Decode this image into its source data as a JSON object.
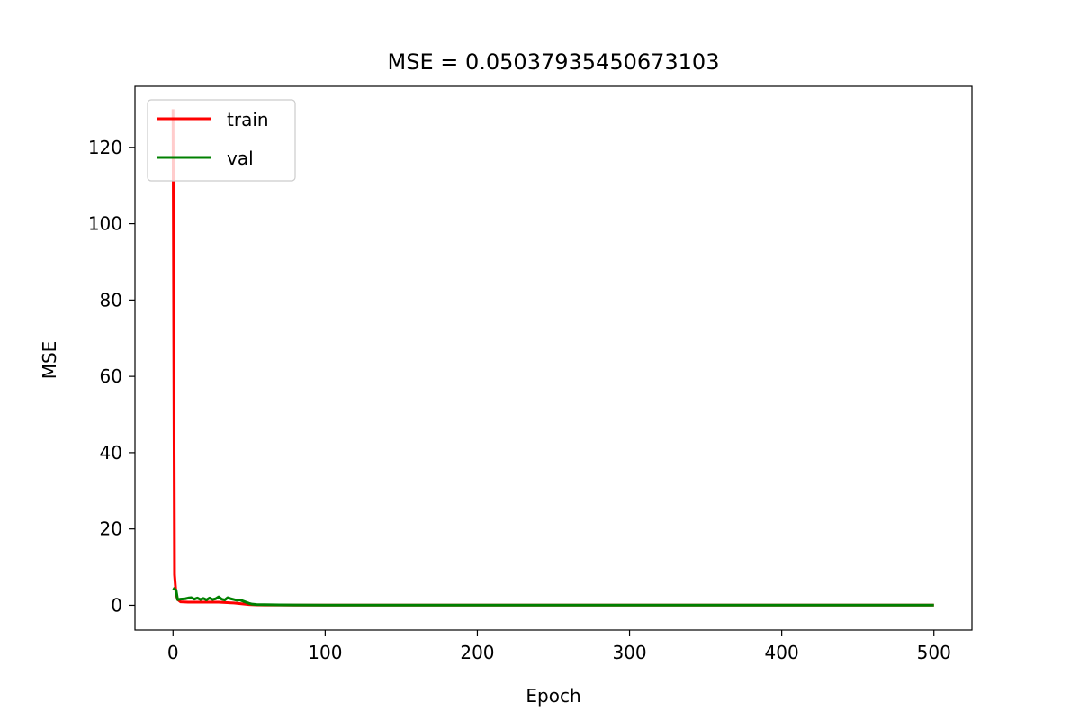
{
  "chart_data": {
    "type": "line",
    "title": "MSE = 0.05037935450673103",
    "xlabel": "Epoch",
    "ylabel": "MSE",
    "xlim": [
      -25,
      525
    ],
    "ylim": [
      -6.5,
      136
    ],
    "xticks": [
      0,
      100,
      200,
      300,
      400,
      500
    ],
    "yticks": [
      0,
      20,
      40,
      60,
      80,
      100,
      120
    ],
    "grid": false,
    "legend_position": "upper-left",
    "series": [
      {
        "name": "train",
        "color": "#ff0000",
        "points": [
          [
            0,
            130
          ],
          [
            1,
            8
          ],
          [
            2,
            3
          ],
          [
            3,
            1.5
          ],
          [
            5,
            0.9
          ],
          [
            10,
            0.8
          ],
          [
            20,
            0.8
          ],
          [
            30,
            0.8
          ],
          [
            40,
            0.6
          ],
          [
            45,
            0.4
          ],
          [
            50,
            0.2
          ],
          [
            55,
            0.1
          ],
          [
            60,
            0.08
          ],
          [
            80,
            0.06
          ],
          [
            100,
            0.05
          ],
          [
            200,
            0.05
          ],
          [
            300,
            0.05
          ],
          [
            400,
            0.05
          ],
          [
            500,
            0.05
          ]
        ]
      },
      {
        "name": "val",
        "color": "#008000",
        "points": [
          [
            0,
            4.5
          ],
          [
            2,
            4.0
          ],
          [
            3,
            1.5
          ],
          [
            5,
            1.6
          ],
          [
            8,
            1.7
          ],
          [
            10,
            1.9
          ],
          [
            12,
            2.0
          ],
          [
            14,
            1.6
          ],
          [
            16,
            1.9
          ],
          [
            18,
            1.5
          ],
          [
            20,
            1.8
          ],
          [
            22,
            1.4
          ],
          [
            24,
            1.9
          ],
          [
            26,
            1.5
          ],
          [
            28,
            1.7
          ],
          [
            30,
            2.2
          ],
          [
            32,
            1.6
          ],
          [
            34,
            1.4
          ],
          [
            36,
            2.0
          ],
          [
            38,
            1.7
          ],
          [
            40,
            1.5
          ],
          [
            42,
            1.3
          ],
          [
            44,
            1.4
          ],
          [
            46,
            1.1
          ],
          [
            48,
            0.8
          ],
          [
            50,
            0.5
          ],
          [
            52,
            0.3
          ],
          [
            55,
            0.2
          ],
          [
            60,
            0.15
          ],
          [
            70,
            0.1
          ],
          [
            80,
            0.08
          ],
          [
            100,
            0.06
          ],
          [
            200,
            0.05
          ],
          [
            300,
            0.05
          ],
          [
            400,
            0.05
          ],
          [
            500,
            0.05
          ]
        ]
      }
    ]
  }
}
